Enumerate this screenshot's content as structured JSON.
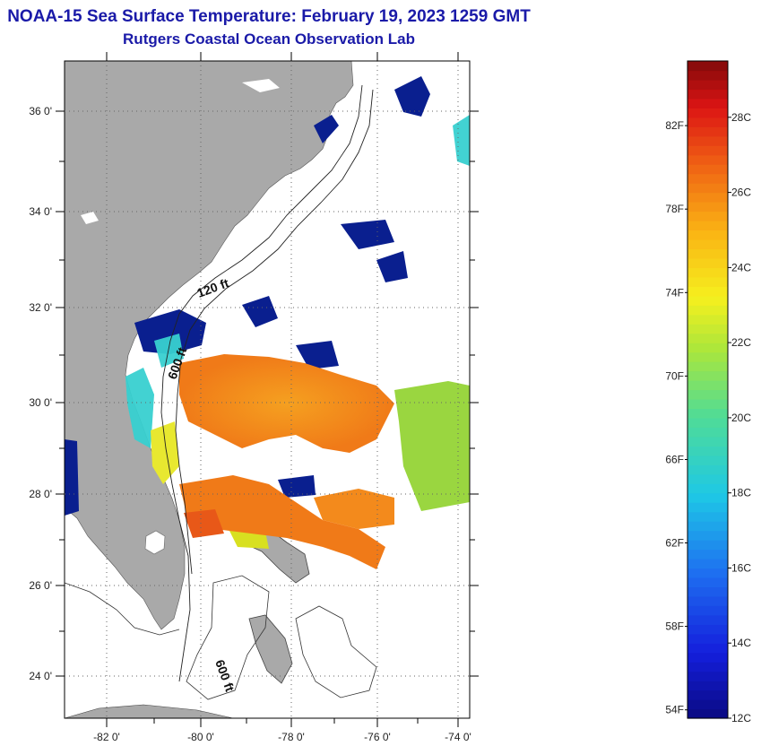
{
  "header": {
    "title": "NOAA-15 Sea Surface Temperature:  February 19, 2023 1259 GMT",
    "subtitle": "Rutgers Coastal Ocean Observation Lab"
  },
  "map": {
    "lat_ticks": [
      "36 0'",
      "34 0'",
      "32 0'",
      "30 0'",
      "28 0'",
      "26 0'",
      "24 0'"
    ],
    "lon_ticks": [
      "-82 0'",
      "-80 0'",
      "-78 0'",
      "-76 0'",
      "-74 0'"
    ],
    "contour_labels": [
      "120 ft",
      "600 ft",
      "600 ft"
    ],
    "colors": {
      "land": "#a9a9a9",
      "cold": "#0a1f8f",
      "warm": "#f07a18",
      "mid": "#9ad640"
    }
  },
  "colorbar": {
    "fahrenheit": [
      "82F",
      "78F",
      "74F",
      "70F",
      "66F",
      "62F",
      "58F",
      "54F"
    ],
    "celsius": [
      "28C",
      "26C",
      "24C",
      "22C",
      "20C",
      "18C",
      "16C",
      "14C",
      "12C"
    ],
    "range_c": [
      12,
      29.5
    ]
  }
}
